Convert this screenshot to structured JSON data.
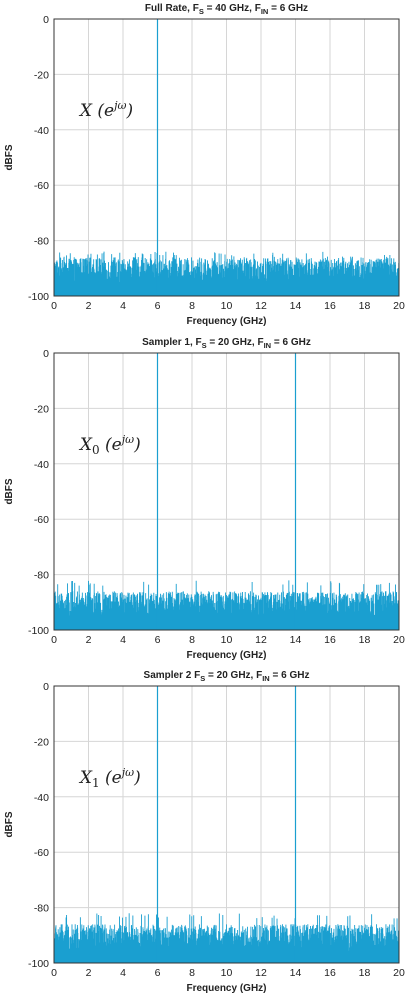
{
  "colors": {
    "trace": "#1a9fd0",
    "grid": "#d6d6d6",
    "axis": "#333333"
  },
  "chart_data": [
    {
      "type": "line",
      "title_parts": [
        {
          "text": "Full Rate, F",
          "role": "normal"
        },
        {
          "text": "S",
          "role": "sub"
        },
        {
          "text": " = 40 GHz, F",
          "role": "normal"
        },
        {
          "text": "IN",
          "role": "sub"
        },
        {
          "text": " = 6 GHz",
          "role": "normal"
        }
      ],
      "xlabel": "Frequency (GHz)",
      "ylabel": "dBFS",
      "xlim": [
        0,
        20
      ],
      "ylim": [
        -100,
        0
      ],
      "xticks": [
        0,
        2,
        4,
        6,
        8,
        10,
        12,
        14,
        16,
        18,
        20
      ],
      "yticks": [
        0,
        -20,
        -40,
        -60,
        -80,
        -100
      ],
      "grid": true,
      "annotation": {
        "base": "X",
        "subscript": "",
        "arg": "(e",
        "sup": "jω",
        "close": ")",
        "x": 1.5,
        "y": -35
      },
      "noise_floor_dbfs": [
        -100,
        -86
      ],
      "tones": [
        {
          "x": 6,
          "y": 0
        }
      ],
      "series": [
        {
          "values_note": "noise floor spectrum",
          "x": [
            0,
            20
          ]
        }
      ]
    },
    {
      "type": "line",
      "title_parts": [
        {
          "text": "Sampler 1, F",
          "role": "normal"
        },
        {
          "text": "S",
          "role": "sub"
        },
        {
          "text": " = 20 GHz, F",
          "role": "normal"
        },
        {
          "text": "IN",
          "role": "sub"
        },
        {
          "text": " = 6 GHz",
          "role": "normal"
        }
      ],
      "xlabel": "Frequency (GHz)",
      "ylabel": "dBFS",
      "xlim": [
        0,
        20
      ],
      "ylim": [
        -100,
        0
      ],
      "xticks": [
        0,
        2,
        4,
        6,
        8,
        10,
        12,
        14,
        16,
        18,
        20
      ],
      "yticks": [
        0,
        -20,
        -40,
        -60,
        -80,
        -100
      ],
      "grid": true,
      "annotation": {
        "base": "X",
        "subscript": "0",
        "arg": "(e",
        "sup": "jω",
        "close": ")",
        "x": 1.5,
        "y": -35
      },
      "noise_floor_dbfs": [
        -100,
        -84
      ],
      "tones": [
        {
          "x": 6,
          "y": 0
        },
        {
          "x": 14,
          "y": 0
        }
      ]
    },
    {
      "type": "line",
      "title_parts": [
        {
          "text": "Sampler 2 F",
          "role": "normal"
        },
        {
          "text": "S",
          "role": "sub"
        },
        {
          "text": " = 20 GHz, F",
          "role": "normal"
        },
        {
          "text": "IN",
          "role": "sub"
        },
        {
          "text": " = 6 GHz",
          "role": "normal"
        }
      ],
      "xlabel": "Frequency (GHz)",
      "ylabel": "dBFS",
      "xlim": [
        0,
        20
      ],
      "ylim": [
        -100,
        0
      ],
      "xticks": [
        0,
        2,
        4,
        6,
        8,
        10,
        12,
        14,
        16,
        18,
        20
      ],
      "yticks": [
        0,
        -20,
        -40,
        -60,
        -80,
        -100
      ],
      "grid": true,
      "annotation": {
        "base": "X",
        "subscript": "1",
        "arg": "(e",
        "sup": "jω",
        "close": ")",
        "x": 1.5,
        "y": -35
      },
      "noise_floor_dbfs": [
        -100,
        -84
      ],
      "tones": [
        {
          "x": 6,
          "y": 0
        },
        {
          "x": 14,
          "y": 0
        }
      ]
    }
  ]
}
